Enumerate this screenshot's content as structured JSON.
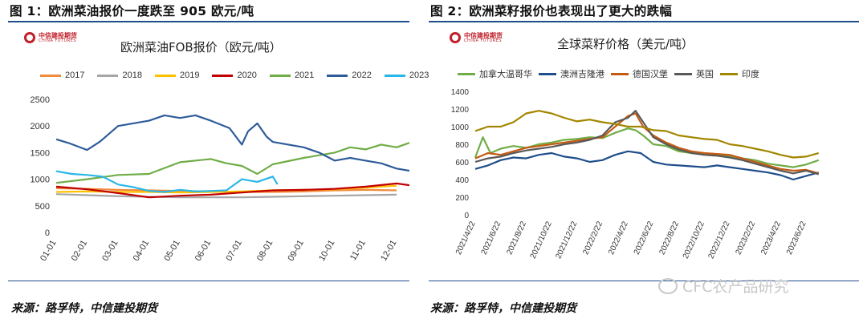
{
  "figures": [
    {
      "figure_title": "图 1：欧洲菜油报价一度跌至 905 欧元/吨",
      "logo": {
        "cn": "中信建投期货",
        "en": "CHINA FUTURES"
      },
      "source": "来源：路孚特，中信建投期货"
    },
    {
      "figure_title": "图 2：欧洲菜籽报价也表现出了更大的跌幅",
      "logo": {
        "cn": "中信建投期货",
        "en": "CHINA FUTURES"
      },
      "source": "来源：路孚特，中信建投期货"
    }
  ],
  "watermark": "CFC农产品研究",
  "chart_data": [
    {
      "type": "line",
      "title": "欧洲菜油FOB报价（欧元/吨）",
      "x": [
        "01-01",
        "02-01",
        "03-01",
        "04-01",
        "05-01",
        "06-01",
        "07-01",
        "08-01",
        "09-01",
        "10-01",
        "11-01",
        "12-01"
      ],
      "ylim": [
        0,
        2500
      ],
      "yticks": [
        0,
        500,
        1000,
        1500,
        2000,
        2500
      ],
      "grid": false,
      "legend_position": "top",
      "series": [
        {
          "name": "2017",
          "color": "#f08a3c",
          "points": [
            [
              0,
              830
            ],
            [
              1,
              820
            ],
            [
              2,
              800
            ],
            [
              3,
              790
            ],
            [
              4,
              780
            ],
            [
              5,
              770
            ],
            [
              6,
              760
            ],
            [
              7,
              760
            ],
            [
              8,
              770
            ],
            [
              9,
              790
            ],
            [
              10,
              800
            ],
            [
              11,
              790
            ]
          ]
        },
        {
          "name": "2018",
          "color": "#a6a6a6",
          "points": [
            [
              0,
              720
            ],
            [
              1,
              700
            ],
            [
              2,
              680
            ],
            [
              3,
              670
            ],
            [
              4,
              660
            ],
            [
              5,
              660
            ],
            [
              6,
              660
            ],
            [
              7,
              670
            ],
            [
              8,
              680
            ],
            [
              9,
              690
            ],
            [
              10,
              700
            ],
            [
              11,
              710
            ]
          ]
        },
        {
          "name": "2019",
          "color": "#ffc000",
          "points": [
            [
              0,
              760
            ],
            [
              1,
              770
            ],
            [
              2,
              760
            ],
            [
              3,
              760
            ],
            [
              4,
              750
            ],
            [
              5,
              760
            ],
            [
              6,
              770
            ],
            [
              7,
              790
            ],
            [
              8,
              800
            ],
            [
              9,
              810
            ],
            [
              10,
              840
            ],
            [
              11,
              880
            ]
          ]
        },
        {
          "name": "2020",
          "color": "#c00000",
          "points": [
            [
              0,
              860
            ],
            [
              1,
              810
            ],
            [
              2,
              740
            ],
            [
              3,
              660
            ],
            [
              4,
              690
            ],
            [
              5,
              710
            ],
            [
              6,
              750
            ],
            [
              7,
              790
            ],
            [
              8,
              800
            ],
            [
              9,
              820
            ],
            [
              10,
              860
            ],
            [
              11,
              920
            ],
            [
              11.5,
              880
            ],
            [
              11.9,
              850
            ]
          ]
        },
        {
          "name": "2021",
          "color": "#70ad47",
          "points": [
            [
              0,
              930
            ],
            [
              1,
              1000
            ],
            [
              2,
              1080
            ],
            [
              3,
              1100
            ],
            [
              4,
              1320
            ],
            [
              5,
              1380
            ],
            [
              5.5,
              1300
            ],
            [
              6,
              1250
            ],
            [
              6.5,
              1100
            ],
            [
              7,
              1280
            ],
            [
              8,
              1400
            ],
            [
              9,
              1500
            ],
            [
              9.5,
              1600
            ],
            [
              10,
              1560
            ],
            [
              10.5,
              1650
            ],
            [
              11,
              1600
            ],
            [
              11.5,
              1700
            ],
            [
              11.9,
              1680
            ]
          ]
        },
        {
          "name": "2022",
          "color": "#2e5c9a",
          "points": [
            [
              0,
              1750
            ],
            [
              0.4,
              1680
            ],
            [
              1,
              1550
            ],
            [
              1.4,
              1700
            ],
            [
              2,
              2000
            ],
            [
              3,
              2100
            ],
            [
              3.5,
              2200
            ],
            [
              4,
              2150
            ],
            [
              4.5,
              2200
            ],
            [
              5,
              2100
            ],
            [
              5.6,
              1960
            ],
            [
              6,
              1650
            ],
            [
              6.2,
              1900
            ],
            [
              6.5,
              2050
            ],
            [
              6.8,
              1800
            ],
            [
              7,
              1700
            ],
            [
              8,
              1600
            ],
            [
              8.5,
              1500
            ],
            [
              9,
              1350
            ],
            [
              9.5,
              1400
            ],
            [
              10,
              1350
            ],
            [
              10.5,
              1300
            ],
            [
              11,
              1200
            ],
            [
              11.5,
              1150
            ],
            [
              11.9,
              1180
            ]
          ]
        },
        {
          "name": "2023",
          "color": "#29b6e8",
          "points": [
            [
              0,
              1150
            ],
            [
              0.5,
              1100
            ],
            [
              1,
              1080
            ],
            [
              1.5,
              1050
            ],
            [
              2,
              900
            ],
            [
              2.5,
              850
            ],
            [
              3,
              780
            ],
            [
              3.5,
              760
            ],
            [
              4,
              800
            ],
            [
              4.5,
              770
            ],
            [
              5,
              780
            ],
            [
              5.5,
              790
            ],
            [
              6,
              1000
            ],
            [
              6.5,
              950
            ],
            [
              7,
              1050
            ],
            [
              7.15,
              905
            ]
          ]
        }
      ]
    },
    {
      "type": "line",
      "title": "全球菜籽价格（美元/吨）",
      "x": [
        "2021/4/22",
        "2021/6/22",
        "2021/8/22",
        "2021/10/22",
        "2021/12/22",
        "2022/2/22",
        "2022/4/22",
        "2022/6/22",
        "2022/8/22",
        "2022/10/22",
        "2022/12/22",
        "2023/2/22",
        "2023/4/22",
        "2023/6/22"
      ],
      "ylim": [
        0,
        1400
      ],
      "yticks": [
        0,
        200,
        400,
        600,
        800,
        1000,
        1200,
        1400
      ],
      "grid": false,
      "legend_position": "top",
      "series": [
        {
          "name": "加拿大温哥华",
          "color": "#70ad47",
          "points": [
            [
              0,
              650
            ],
            [
              0.3,
              880
            ],
            [
              0.6,
              700
            ],
            [
              1,
              750
            ],
            [
              1.5,
              780
            ],
            [
              2,
              760
            ],
            [
              2.5,
              800
            ],
            [
              3,
              820
            ],
            [
              3.5,
              850
            ],
            [
              4,
              860
            ],
            [
              4.5,
              880
            ],
            [
              5,
              870
            ],
            [
              5.5,
              930
            ],
            [
              6,
              980
            ],
            [
              6.3,
              960
            ],
            [
              6.6,
              900
            ],
            [
              7,
              800
            ],
            [
              7.5,
              780
            ],
            [
              8,
              720
            ],
            [
              8.5,
              700
            ],
            [
              9,
              690
            ],
            [
              9.5,
              680
            ],
            [
              10,
              660
            ],
            [
              10.5,
              640
            ],
            [
              11,
              620
            ],
            [
              11.5,
              580
            ],
            [
              12,
              560
            ],
            [
              12.5,
              540
            ],
            [
              13,
              570
            ],
            [
              13.5,
              620
            ]
          ]
        },
        {
          "name": "澳洲吉隆港",
          "color": "#1f4e8c",
          "points": [
            [
              0,
              520
            ],
            [
              0.5,
              560
            ],
            [
              1,
              620
            ],
            [
              1.5,
              650
            ],
            [
              2,
              640
            ],
            [
              2.5,
              680
            ],
            [
              3,
              700
            ],
            [
              3.5,
              660
            ],
            [
              4,
              640
            ],
            [
              4.5,
              600
            ],
            [
              5,
              620
            ],
            [
              5.5,
              680
            ],
            [
              6,
              720
            ],
            [
              6.5,
              700
            ],
            [
              7,
              600
            ],
            [
              7.5,
              570
            ],
            [
              8,
              560
            ],
            [
              8.5,
              550
            ],
            [
              9,
              540
            ],
            [
              9.5,
              560
            ],
            [
              10,
              540
            ],
            [
              10.5,
              520
            ],
            [
              11,
              500
            ],
            [
              11.5,
              480
            ],
            [
              12,
              450
            ],
            [
              12.5,
              400
            ],
            [
              13,
              440
            ],
            [
              13.5,
              480
            ]
          ]
        },
        {
          "name": "德国汉堡",
          "color": "#c55a11",
          "points": [
            [
              0,
              640
            ],
            [
              0.5,
              700
            ],
            [
              1,
              680
            ],
            [
              1.5,
              720
            ],
            [
              2,
              760
            ],
            [
              2.5,
              780
            ],
            [
              3,
              800
            ],
            [
              3.5,
              820
            ],
            [
              4,
              840
            ],
            [
              4.5,
              860
            ],
            [
              5,
              880
            ],
            [
              5.5,
              1000
            ],
            [
              6,
              1120
            ],
            [
              6.3,
              1150
            ],
            [
              6.6,
              1000
            ],
            [
              7,
              900
            ],
            [
              7.5,
              820
            ],
            [
              8,
              760
            ],
            [
              8.5,
              720
            ],
            [
              9,
              700
            ],
            [
              9.5,
              690
            ],
            [
              10,
              680
            ],
            [
              10.5,
              640
            ],
            [
              11,
              600
            ],
            [
              11.5,
              560
            ],
            [
              12,
              520
            ],
            [
              12.5,
              500
            ],
            [
              13,
              510
            ],
            [
              13.5,
              470
            ]
          ]
        },
        {
          "name": "英国",
          "color": "#595959",
          "points": [
            [
              0,
              600
            ],
            [
              0.5,
              640
            ],
            [
              1,
              660
            ],
            [
              1.5,
              700
            ],
            [
              2,
              730
            ],
            [
              2.5,
              750
            ],
            [
              3,
              770
            ],
            [
              3.5,
              800
            ],
            [
              4,
              820
            ],
            [
              4.5,
              850
            ],
            [
              5,
              900
            ],
            [
              5.5,
              1050
            ],
            [
              6,
              1100
            ],
            [
              6.3,
              1180
            ],
            [
              6.6,
              1050
            ],
            [
              7,
              880
            ],
            [
              7.5,
              800
            ],
            [
              8,
              740
            ],
            [
              8.5,
              700
            ],
            [
              9,
              680
            ],
            [
              9.5,
              670
            ],
            [
              10,
              650
            ],
            [
              10.5,
              620
            ],
            [
              11,
              580
            ],
            [
              11.5,
              540
            ],
            [
              12,
              500
            ],
            [
              12.5,
              470
            ],
            [
              13,
              500
            ],
            [
              13.5,
              460
            ]
          ]
        },
        {
          "name": "印度",
          "color": "#a28600",
          "points": [
            [
              0,
              950
            ],
            [
              0.5,
              1000
            ],
            [
              1,
              1000
            ],
            [
              1.5,
              1050
            ],
            [
              2,
              1150
            ],
            [
              2.5,
              1180
            ],
            [
              3,
              1150
            ],
            [
              3.5,
              1100
            ],
            [
              4,
              1060
            ],
            [
              4.5,
              1080
            ],
            [
              5,
              1050
            ],
            [
              5.5,
              1030
            ],
            [
              6,
              1000
            ],
            [
              6.5,
              1000
            ],
            [
              7,
              960
            ],
            [
              7.5,
              950
            ],
            [
              8,
              900
            ],
            [
              8.5,
              880
            ],
            [
              9,
              860
            ],
            [
              9.5,
              850
            ],
            [
              10,
              800
            ],
            [
              10.5,
              780
            ],
            [
              11,
              750
            ],
            [
              11.5,
              720
            ],
            [
              12,
              680
            ],
            [
              12.5,
              650
            ],
            [
              13,
              660
            ],
            [
              13.5,
              700
            ]
          ]
        }
      ]
    }
  ]
}
